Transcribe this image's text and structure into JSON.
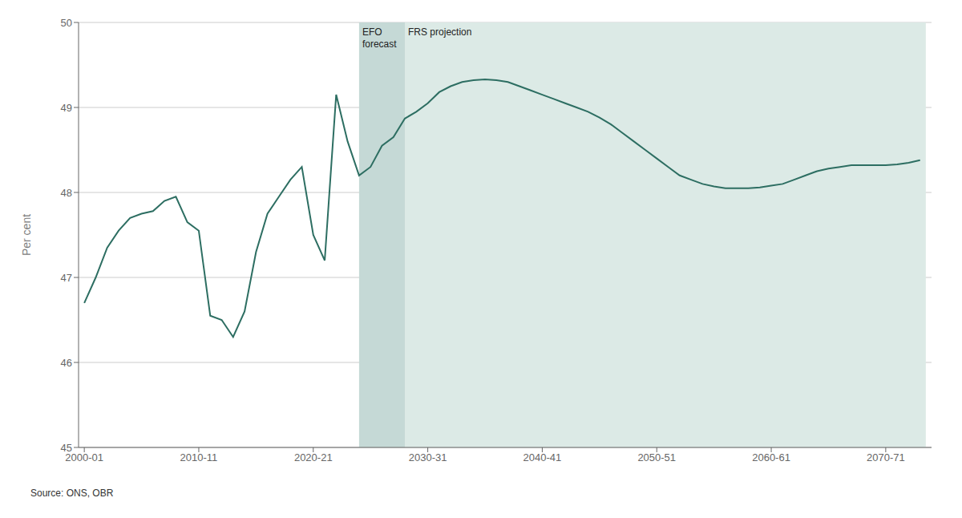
{
  "chart_data": {
    "type": "line",
    "ylabel": "Per cent",
    "source": "Source: ONS, OBR",
    "xlim": [
      1999.5,
      2074.0
    ],
    "xticks": [
      {
        "value": 2000,
        "label": "2000-01"
      },
      {
        "value": 2010,
        "label": "2010-11"
      },
      {
        "value": 2020,
        "label": "2020-21"
      },
      {
        "value": 2030,
        "label": "2030-31"
      },
      {
        "value": 2040,
        "label": "2040-41"
      },
      {
        "value": 2050,
        "label": "2050-51"
      },
      {
        "value": 2060,
        "label": "2060-61"
      },
      {
        "value": 2070,
        "label": "2070-71"
      }
    ],
    "ylim": [
      45,
      50
    ],
    "yticks": [
      45,
      46,
      47,
      48,
      49,
      50
    ],
    "grid": "y",
    "shaded_regions": [
      {
        "start": 2024.0,
        "end": 2028.0,
        "color": "#c5d9d6",
        "label": "EFO\nforecast"
      },
      {
        "start": 2028.0,
        "end": 2073.5,
        "color": "#dceae6",
        "label": "FRS projection"
      }
    ],
    "x": [
      2000,
      2001,
      2002,
      2003,
      2004,
      2005,
      2006,
      2007,
      2008,
      2009,
      2010,
      2011,
      2012,
      2013,
      2014,
      2015,
      2016,
      2017,
      2018,
      2019,
      2020,
      2021,
      2022,
      2023,
      2024,
      2025,
      2026,
      2027,
      2028,
      2029,
      2030,
      2031,
      2032,
      2033,
      2034,
      2035,
      2036,
      2037,
      2038,
      2039,
      2040,
      2041,
      2042,
      2043,
      2044,
      2045,
      2046,
      2047,
      2048,
      2049,
      2050,
      2051,
      2052,
      2053,
      2054,
      2055,
      2056,
      2057,
      2058,
      2059,
      2060,
      2061,
      2062,
      2063,
      2064,
      2065,
      2066,
      2067,
      2068,
      2069,
      2070,
      2071,
      2072,
      2073
    ],
    "series": [
      {
        "color": "#2d6e62",
        "values": [
          46.7,
          47.0,
          47.35,
          47.55,
          47.7,
          47.75,
          47.78,
          47.9,
          47.95,
          47.65,
          47.55,
          46.55,
          46.5,
          46.3,
          46.6,
          47.3,
          47.75,
          47.95,
          48.15,
          48.3,
          47.5,
          47.2,
          49.15,
          48.6,
          48.2,
          48.3,
          48.55,
          48.65,
          48.87,
          48.95,
          49.05,
          49.18,
          49.25,
          49.3,
          49.32,
          49.33,
          49.32,
          49.3,
          49.25,
          49.2,
          49.15,
          49.1,
          49.05,
          49.0,
          48.95,
          48.88,
          48.8,
          48.7,
          48.6,
          48.5,
          48.4,
          48.3,
          48.2,
          48.15,
          48.1,
          48.07,
          48.05,
          48.05,
          48.05,
          48.06,
          48.08,
          48.1,
          48.15,
          48.2,
          48.25,
          48.28,
          48.3,
          48.32,
          48.32,
          48.32,
          48.32,
          48.33,
          48.35,
          48.38
        ]
      }
    ]
  }
}
